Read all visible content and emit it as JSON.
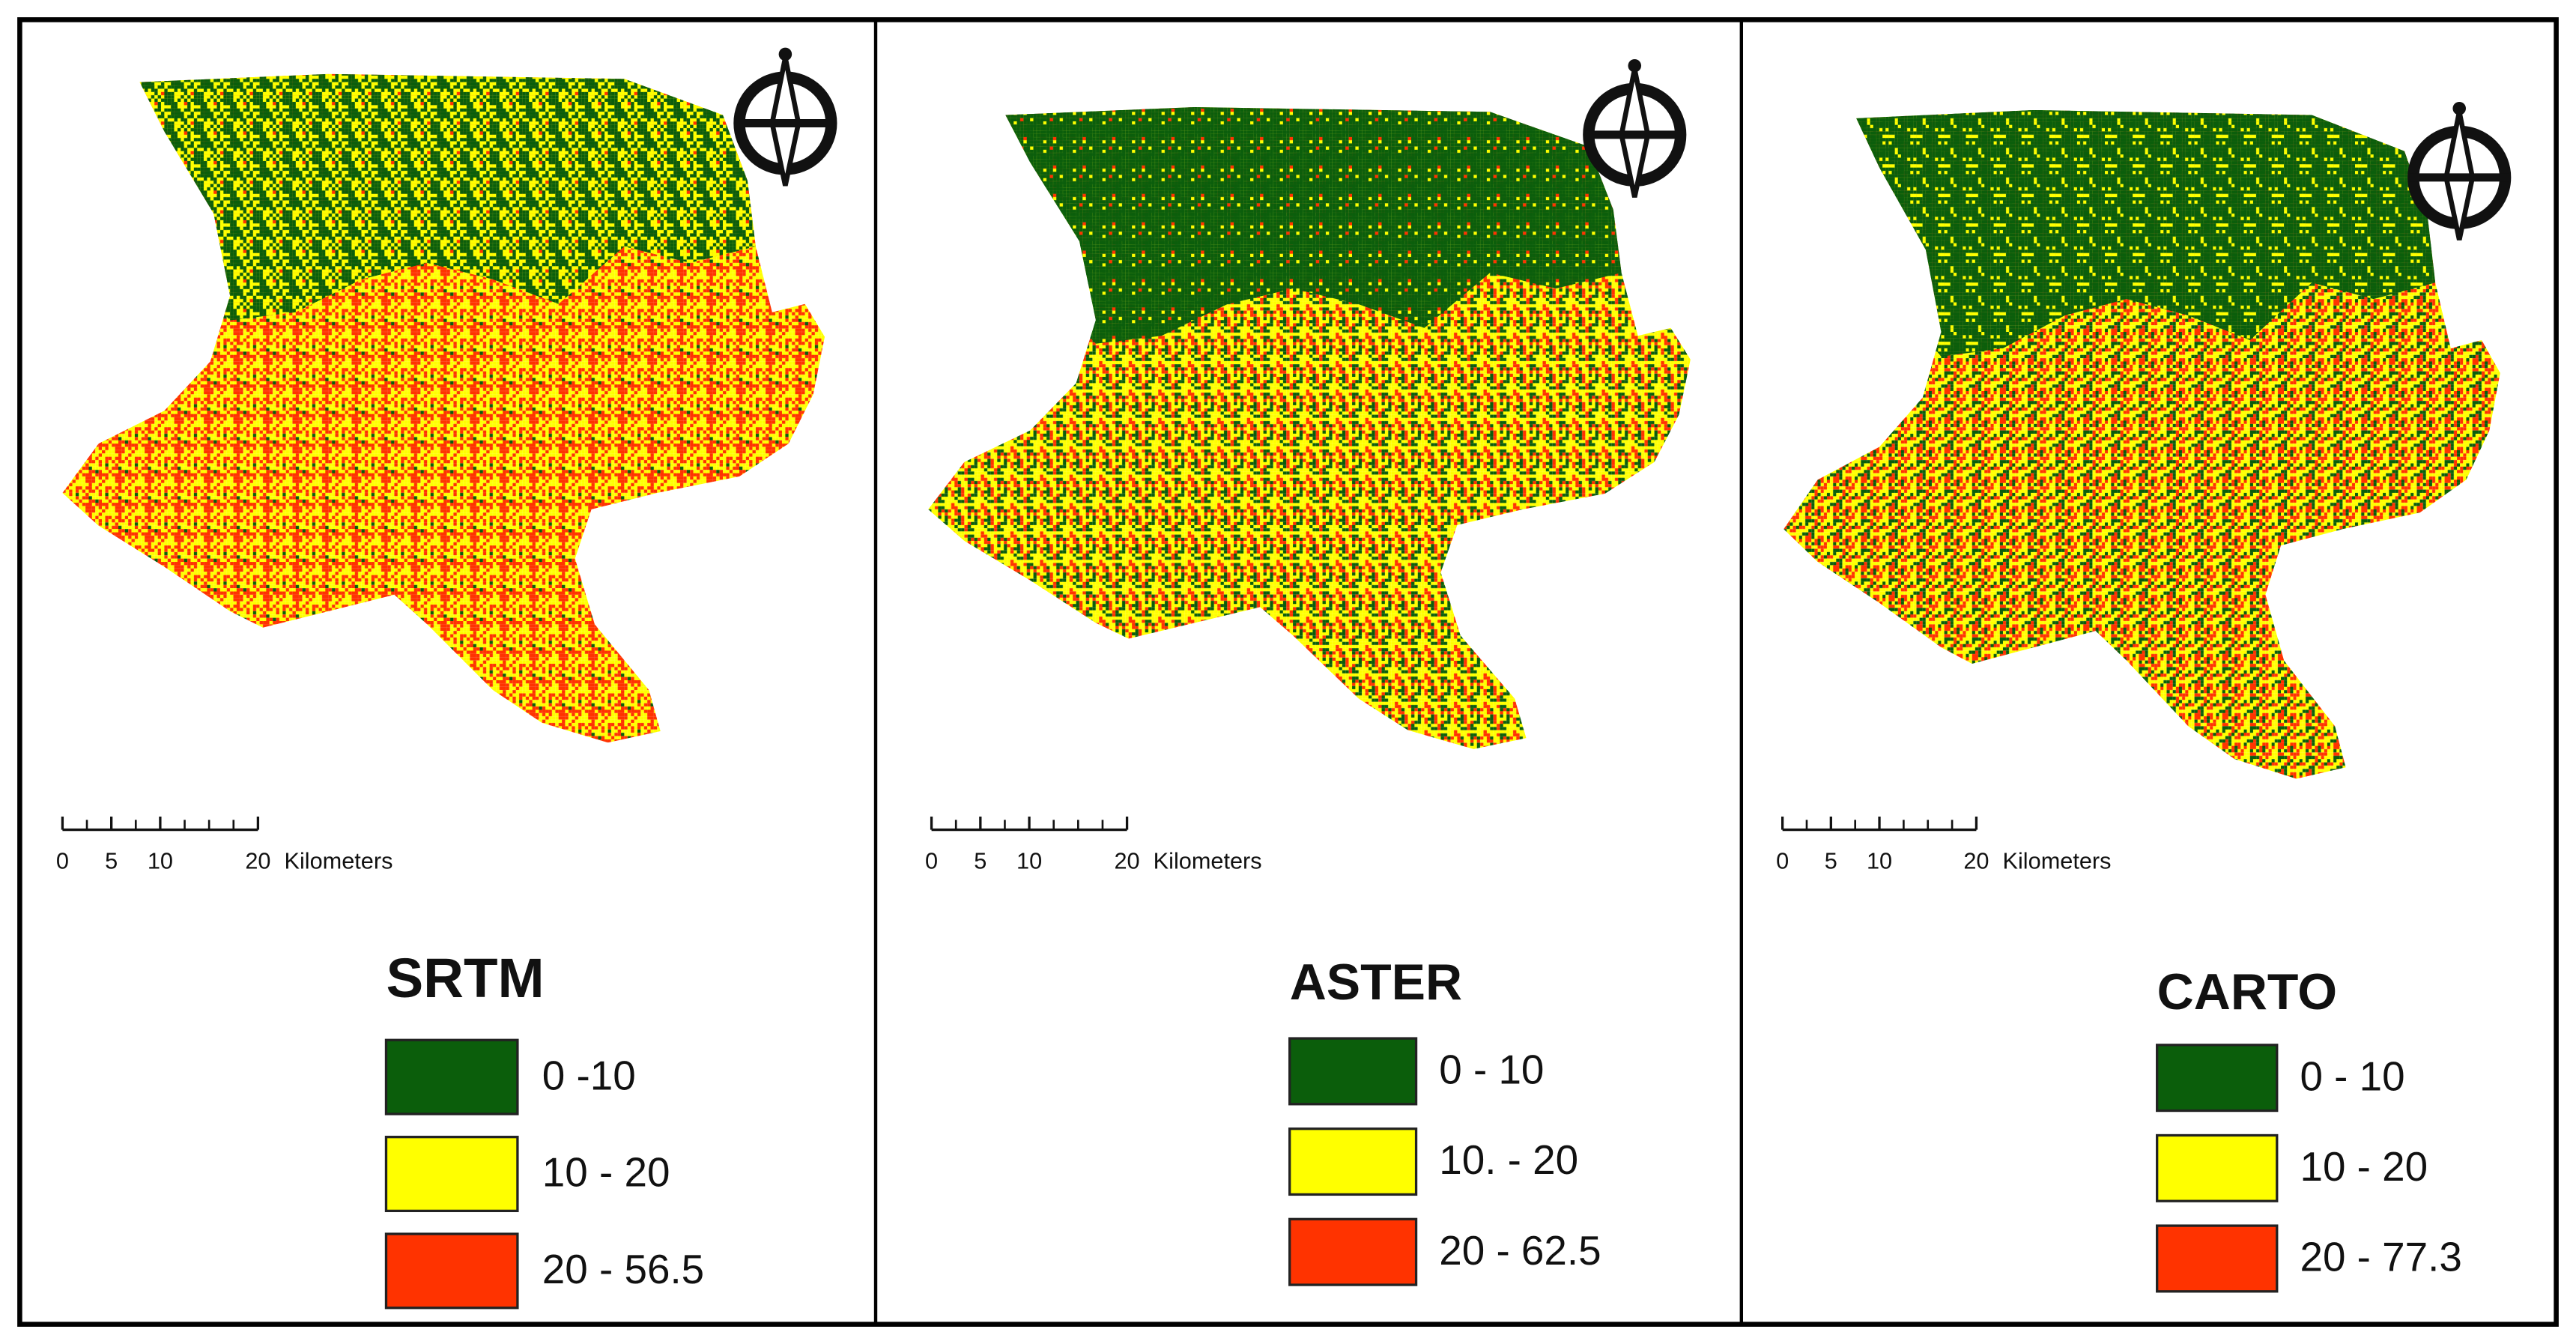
{
  "panels": [
    {
      "title": "SRTM",
      "scale_bar": {
        "ticks": [
          0,
          5,
          10,
          20
        ],
        "unit": "Kilometers"
      },
      "legend": [
        {
          "label": "0 -10",
          "color": "#0b5e0b"
        },
        {
          "label": "10 - 20",
          "color": "#ffff00"
        },
        {
          "label": "20 - 56.5",
          "color": "#ff3300"
        }
      ]
    },
    {
      "title": "ASTER",
      "scale_bar": {
        "ticks": [
          0,
          5,
          10,
          20
        ],
        "unit": "Kilometers"
      },
      "legend": [
        {
          "label": "0 - 10",
          "color": "#0b5e0b"
        },
        {
          "label": "10. - 20",
          "color": "#ffff00"
        },
        {
          "label": "20 - 62.5",
          "color": "#ff3300"
        }
      ]
    },
    {
      "title": "CARTO",
      "scale_bar": {
        "ticks": [
          0,
          5,
          10,
          20
        ],
        "unit": "Kilometers"
      },
      "legend": [
        {
          "label": "0 - 10",
          "color": "#0b5e0b"
        },
        {
          "label": "10 - 20",
          "color": "#ffff00"
        },
        {
          "label": "20 - 77.3",
          "color": "#ff3300"
        }
      ]
    }
  ]
}
